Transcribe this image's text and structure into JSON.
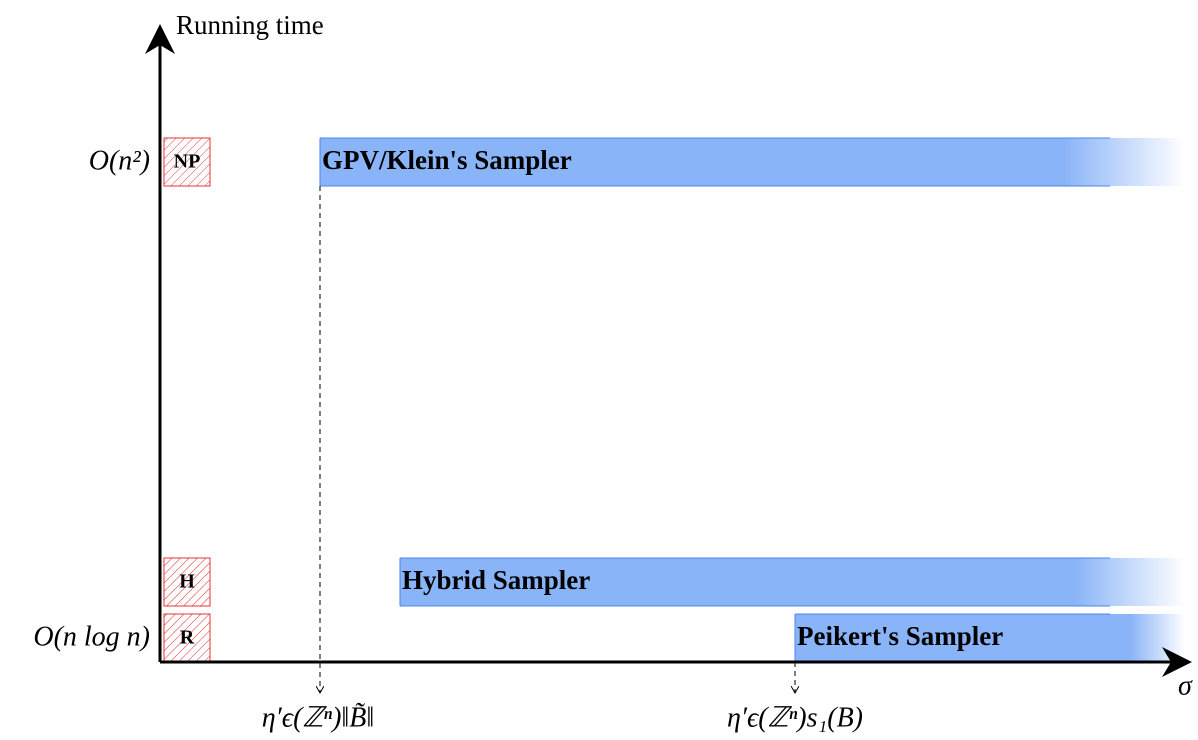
{
  "axes": {
    "y_label": "Running time",
    "x_label": "σ"
  },
  "y_levels": [
    "O(n²)",
    "O(n log n)"
  ],
  "tags": [
    "NP",
    "H",
    "R"
  ],
  "samplers": [
    "GPV/Klein's Sampler",
    "Hybrid Sampler",
    "Peikert's Sampler"
  ],
  "thresholds": [
    "η′ϵ(ℤⁿ)‖B̃‖",
    "η′ϵ(ℤⁿ)s₁(B)"
  ]
}
